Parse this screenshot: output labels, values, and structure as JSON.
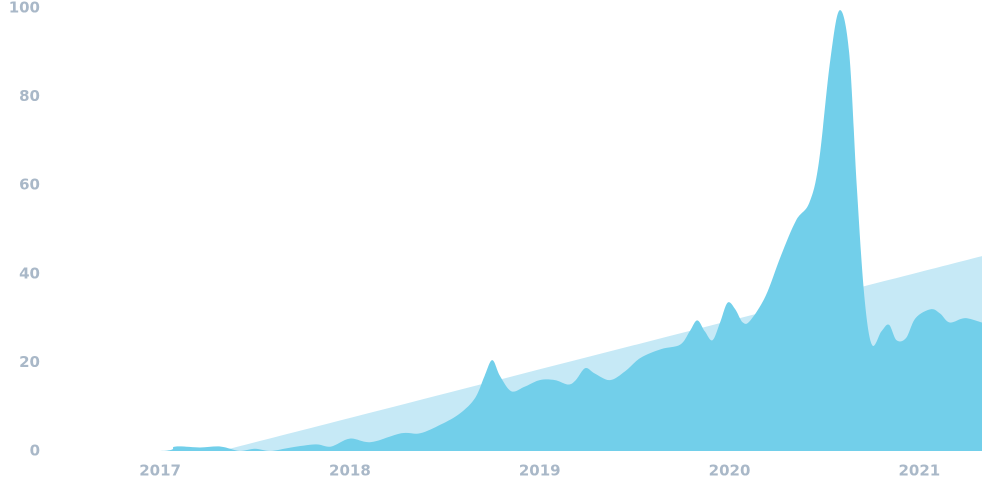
{
  "chart_data": {
    "type": "area",
    "xlim": [
      2016.42,
      2021.33
    ],
    "xticks": [
      2017,
      2018,
      2019,
      2020,
      2021
    ],
    "ylim": [
      0,
      100
    ],
    "yticks": [
      0,
      20,
      40,
      60,
      80,
      100
    ],
    "grid": false,
    "series": [
      {
        "color": "#c6e9f6",
        "x": [
          2017.32,
          2021.33
        ],
        "values": [
          0,
          44
        ]
      },
      {
        "color": "#72cfea",
        "x": [
          2016.42,
          2017.0,
          2017.08,
          2017.21,
          2017.32,
          2017.42,
          2017.5,
          2017.58,
          2017.69,
          2017.82,
          2017.9,
          2018.0,
          2018.11,
          2018.27,
          2018.37,
          2018.48,
          2018.58,
          2018.66,
          2018.71,
          2018.75,
          2018.79,
          2018.85,
          2018.92,
          2019.0,
          2019.08,
          2019.15,
          2019.19,
          2019.24,
          2019.29,
          2019.37,
          2019.45,
          2019.53,
          2019.64,
          2019.74,
          2019.79,
          2019.83,
          2019.87,
          2019.91,
          2019.95,
          2019.99,
          2020.03,
          2020.07,
          2020.11,
          2020.19,
          2020.27,
          2020.35,
          2020.42,
          2020.47,
          2020.53,
          2020.58,
          2020.63,
          2020.67,
          2020.71,
          2020.75,
          2020.8,
          2020.84,
          2020.88,
          2020.93,
          2020.98,
          2021.06,
          2021.11,
          2021.16,
          2021.24,
          2021.33
        ],
        "values": [
          0,
          0,
          1,
          0.8,
          1,
          0,
          0.5,
          0,
          0.8,
          1.5,
          1,
          2.8,
          2,
          4,
          4,
          6,
          8.5,
          12,
          17,
          20.5,
          17,
          13.5,
          14.5,
          16,
          16,
          15,
          16,
          18.7,
          17.5,
          16,
          18,
          21,
          23,
          24,
          27,
          29.5,
          27,
          25,
          29,
          33.5,
          32,
          29,
          29.5,
          35,
          44,
          52,
          56,
          65,
          88,
          99.5,
          90,
          60,
          35,
          24,
          27,
          28.5,
          25,
          25.5,
          30,
          32,
          31,
          29,
          30,
          29
        ]
      }
    ]
  }
}
